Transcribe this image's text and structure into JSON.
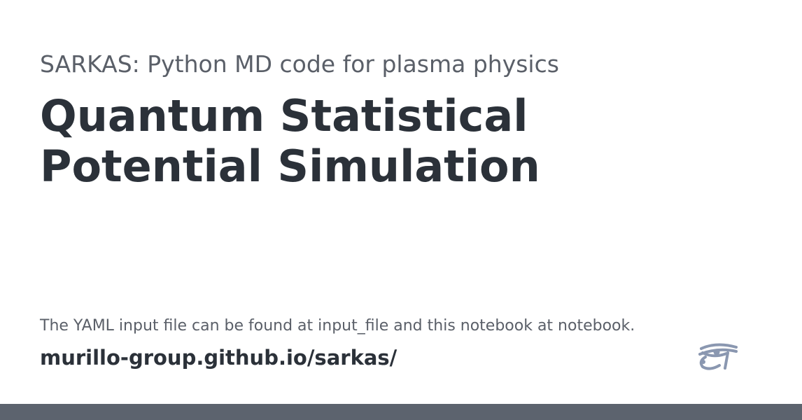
{
  "header": {
    "subtitle": "SARKAS: Python MD code for plasma physics",
    "title": "Quantum Statistical Potential Simulation"
  },
  "footer": {
    "description": "The YAML input file can be found at input_file and this notebook at notebook.",
    "site_url": "murillo-group.github.io/sarkas/",
    "logo_icon": "eye-of-horus-icon"
  },
  "colors": {
    "bottom_bar": "#5c636e",
    "logo": "#8a97b0",
    "title": "#2b3139",
    "subtitle": "#5a5f68"
  }
}
